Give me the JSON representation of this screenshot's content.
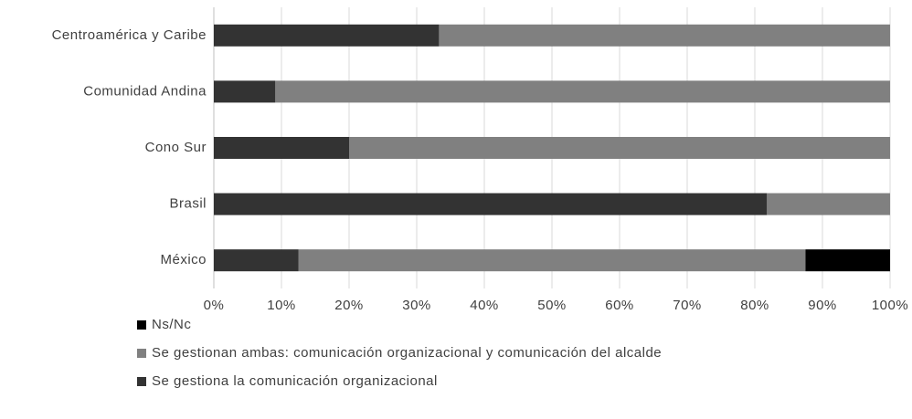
{
  "chart_data": {
    "type": "stacked_barh",
    "categories": [
      "Centroamérica y Caribe",
      "Comunidad Andina",
      "Cono Sur",
      "Brasil",
      "México"
    ],
    "series": [
      {
        "name": "Se gestiona la comunicación organizacional",
        "color": "#333333",
        "values": [
          33.3,
          9.1,
          20,
          81.8,
          12.5
        ]
      },
      {
        "name": "Se gestionan ambas: comunicación organizacional y comunicación del alcalde",
        "color": "#808080",
        "values": [
          66.7,
          90.9,
          80,
          18.2,
          75
        ]
      },
      {
        "name": "Ns/Nc",
        "color": "#000000",
        "values": [
          0,
          0,
          0,
          0,
          12.5
        ]
      }
    ],
    "xlim": [
      0,
      100
    ],
    "xticks": [
      {
        "value": 0,
        "label": "0%"
      },
      {
        "value": 10,
        "label": "10%"
      },
      {
        "value": 20,
        "label": "20%"
      },
      {
        "value": 30,
        "label": "30%"
      },
      {
        "value": 40,
        "label": "40%"
      },
      {
        "value": 50,
        "label": "50%"
      },
      {
        "value": 60,
        "label": "60%"
      },
      {
        "value": 70,
        "label": "70%"
      },
      {
        "value": 80,
        "label": "80%"
      },
      {
        "value": 90,
        "label": "90%"
      },
      {
        "value": 100,
        "label": "100%"
      }
    ],
    "grid": true,
    "legend": "bottom"
  }
}
